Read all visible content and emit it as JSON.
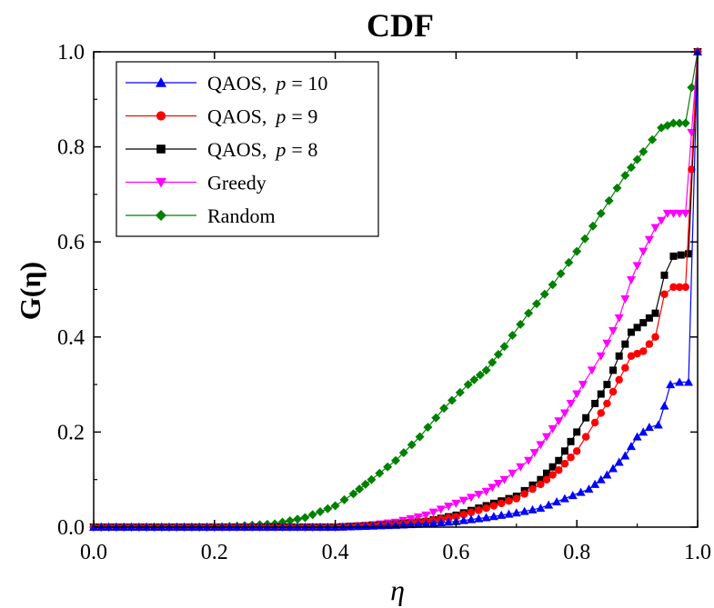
{
  "chart_data": {
    "type": "line",
    "title": "CDF",
    "xlabel": "η",
    "ylabel": "G(η)",
    "xlim": [
      0.0,
      1.0
    ],
    "ylim": [
      0.0,
      1.0
    ],
    "x_ticks": [
      "0.0",
      "0.2",
      "0.4",
      "0.6",
      "0.8",
      "1.0"
    ],
    "y_ticks": [
      "0.0",
      "0.2",
      "0.4",
      "0.6",
      "0.8",
      "1.0"
    ],
    "grid": false,
    "legend_position": "top-left",
    "series": [
      {
        "name": "QAOS,  p = 10",
        "legend_main": "QAOS,",
        "legend_p": "p",
        "legend_val": "= 10",
        "color": "#0000ff",
        "marker": "triangle-up",
        "points": [
          [
            0.0,
            0.0
          ],
          [
            0.1,
            0.0
          ],
          [
            0.2,
            0.0
          ],
          [
            0.3,
            0.0
          ],
          [
            0.4,
            0.0
          ],
          [
            0.5,
            0.004
          ],
          [
            0.55,
            0.007
          ],
          [
            0.6,
            0.012
          ],
          [
            0.65,
            0.02
          ],
          [
            0.7,
            0.03
          ],
          [
            0.74,
            0.04
          ],
          [
            0.78,
            0.06
          ],
          [
            0.82,
            0.08
          ],
          [
            0.85,
            0.11
          ],
          [
            0.88,
            0.15
          ],
          [
            0.9,
            0.19
          ],
          [
            0.92,
            0.21
          ],
          [
            0.935,
            0.215
          ],
          [
            0.945,
            0.255
          ],
          [
            0.955,
            0.3
          ],
          [
            0.97,
            0.305
          ],
          [
            0.985,
            0.305
          ],
          [
            1.0,
            1.0
          ]
        ]
      },
      {
        "name": "QAOS,  p = 9",
        "legend_main": "QAOS,",
        "legend_p": "p",
        "legend_val": "= 9",
        "color": "#ff0000",
        "marker": "circle",
        "points": [
          [
            0.0,
            0.0
          ],
          [
            0.1,
            0.0
          ],
          [
            0.2,
            0.0
          ],
          [
            0.3,
            0.0
          ],
          [
            0.4,
            0.0
          ],
          [
            0.5,
            0.006
          ],
          [
            0.55,
            0.012
          ],
          [
            0.6,
            0.022
          ],
          [
            0.65,
            0.04
          ],
          [
            0.7,
            0.06
          ],
          [
            0.74,
            0.09
          ],
          [
            0.77,
            0.12
          ],
          [
            0.8,
            0.16
          ],
          [
            0.83,
            0.22
          ],
          [
            0.85,
            0.26
          ],
          [
            0.87,
            0.31
          ],
          [
            0.89,
            0.36
          ],
          [
            0.91,
            0.37
          ],
          [
            0.93,
            0.4
          ],
          [
            0.945,
            0.49
          ],
          [
            0.96,
            0.505
          ],
          [
            0.98,
            0.505
          ],
          [
            1.0,
            1.0
          ]
        ]
      },
      {
        "name": "QAOS,  p = 8",
        "legend_main": "QAOS,",
        "legend_p": "p",
        "legend_val": "= 8",
        "color": "#000000",
        "marker": "square",
        "points": [
          [
            0.0,
            0.0
          ],
          [
            0.1,
            0.0
          ],
          [
            0.2,
            0.0
          ],
          [
            0.3,
            0.0
          ],
          [
            0.4,
            0.0
          ],
          [
            0.5,
            0.006
          ],
          [
            0.55,
            0.012
          ],
          [
            0.6,
            0.025
          ],
          [
            0.65,
            0.045
          ],
          [
            0.7,
            0.065
          ],
          [
            0.74,
            0.1
          ],
          [
            0.77,
            0.14
          ],
          [
            0.8,
            0.2
          ],
          [
            0.83,
            0.26
          ],
          [
            0.85,
            0.3
          ],
          [
            0.87,
            0.36
          ],
          [
            0.89,
            0.41
          ],
          [
            0.91,
            0.43
          ],
          [
            0.93,
            0.45
          ],
          [
            0.945,
            0.53
          ],
          [
            0.96,
            0.57
          ],
          [
            0.985,
            0.575
          ],
          [
            1.0,
            1.0
          ]
        ]
      },
      {
        "name": "Greedy",
        "legend_main": "Greedy",
        "legend_p": "",
        "legend_val": "",
        "color": "#ff00ff",
        "marker": "triangle-down",
        "points": [
          [
            0.0,
            0.0
          ],
          [
            0.1,
            0.0
          ],
          [
            0.2,
            0.0
          ],
          [
            0.3,
            0.0
          ],
          [
            0.4,
            0.0
          ],
          [
            0.45,
            0.003
          ],
          [
            0.5,
            0.01
          ],
          [
            0.55,
            0.025
          ],
          [
            0.6,
            0.05
          ],
          [
            0.65,
            0.075
          ],
          [
            0.68,
            0.1
          ],
          [
            0.72,
            0.14
          ],
          [
            0.75,
            0.19
          ],
          [
            0.78,
            0.24
          ],
          [
            0.81,
            0.3
          ],
          [
            0.84,
            0.36
          ],
          [
            0.87,
            0.44
          ],
          [
            0.89,
            0.52
          ],
          [
            0.91,
            0.58
          ],
          [
            0.93,
            0.63
          ],
          [
            0.95,
            0.66
          ],
          [
            0.98,
            0.66
          ],
          [
            1.0,
            1.0
          ]
        ]
      },
      {
        "name": "Random",
        "legend_main": "Random",
        "legend_p": "",
        "legend_val": "",
        "color": "#008000",
        "marker": "diamond",
        "points": [
          [
            0.0,
            0.0
          ],
          [
            0.1,
            0.0
          ],
          [
            0.2,
            0.0
          ],
          [
            0.25,
            0.003
          ],
          [
            0.3,
            0.007
          ],
          [
            0.35,
            0.02
          ],
          [
            0.4,
            0.045
          ],
          [
            0.43,
            0.07
          ],
          [
            0.46,
            0.1
          ],
          [
            0.5,
            0.14
          ],
          [
            0.54,
            0.19
          ],
          [
            0.58,
            0.25
          ],
          [
            0.62,
            0.3
          ],
          [
            0.65,
            0.33
          ],
          [
            0.68,
            0.38
          ],
          [
            0.72,
            0.45
          ],
          [
            0.76,
            0.51
          ],
          [
            0.8,
            0.58
          ],
          [
            0.84,
            0.66
          ],
          [
            0.88,
            0.74
          ],
          [
            0.91,
            0.79
          ],
          [
            0.94,
            0.84
          ],
          [
            0.96,
            0.85
          ],
          [
            0.98,
            0.85
          ],
          [
            1.0,
            1.0
          ]
        ]
      }
    ]
  }
}
